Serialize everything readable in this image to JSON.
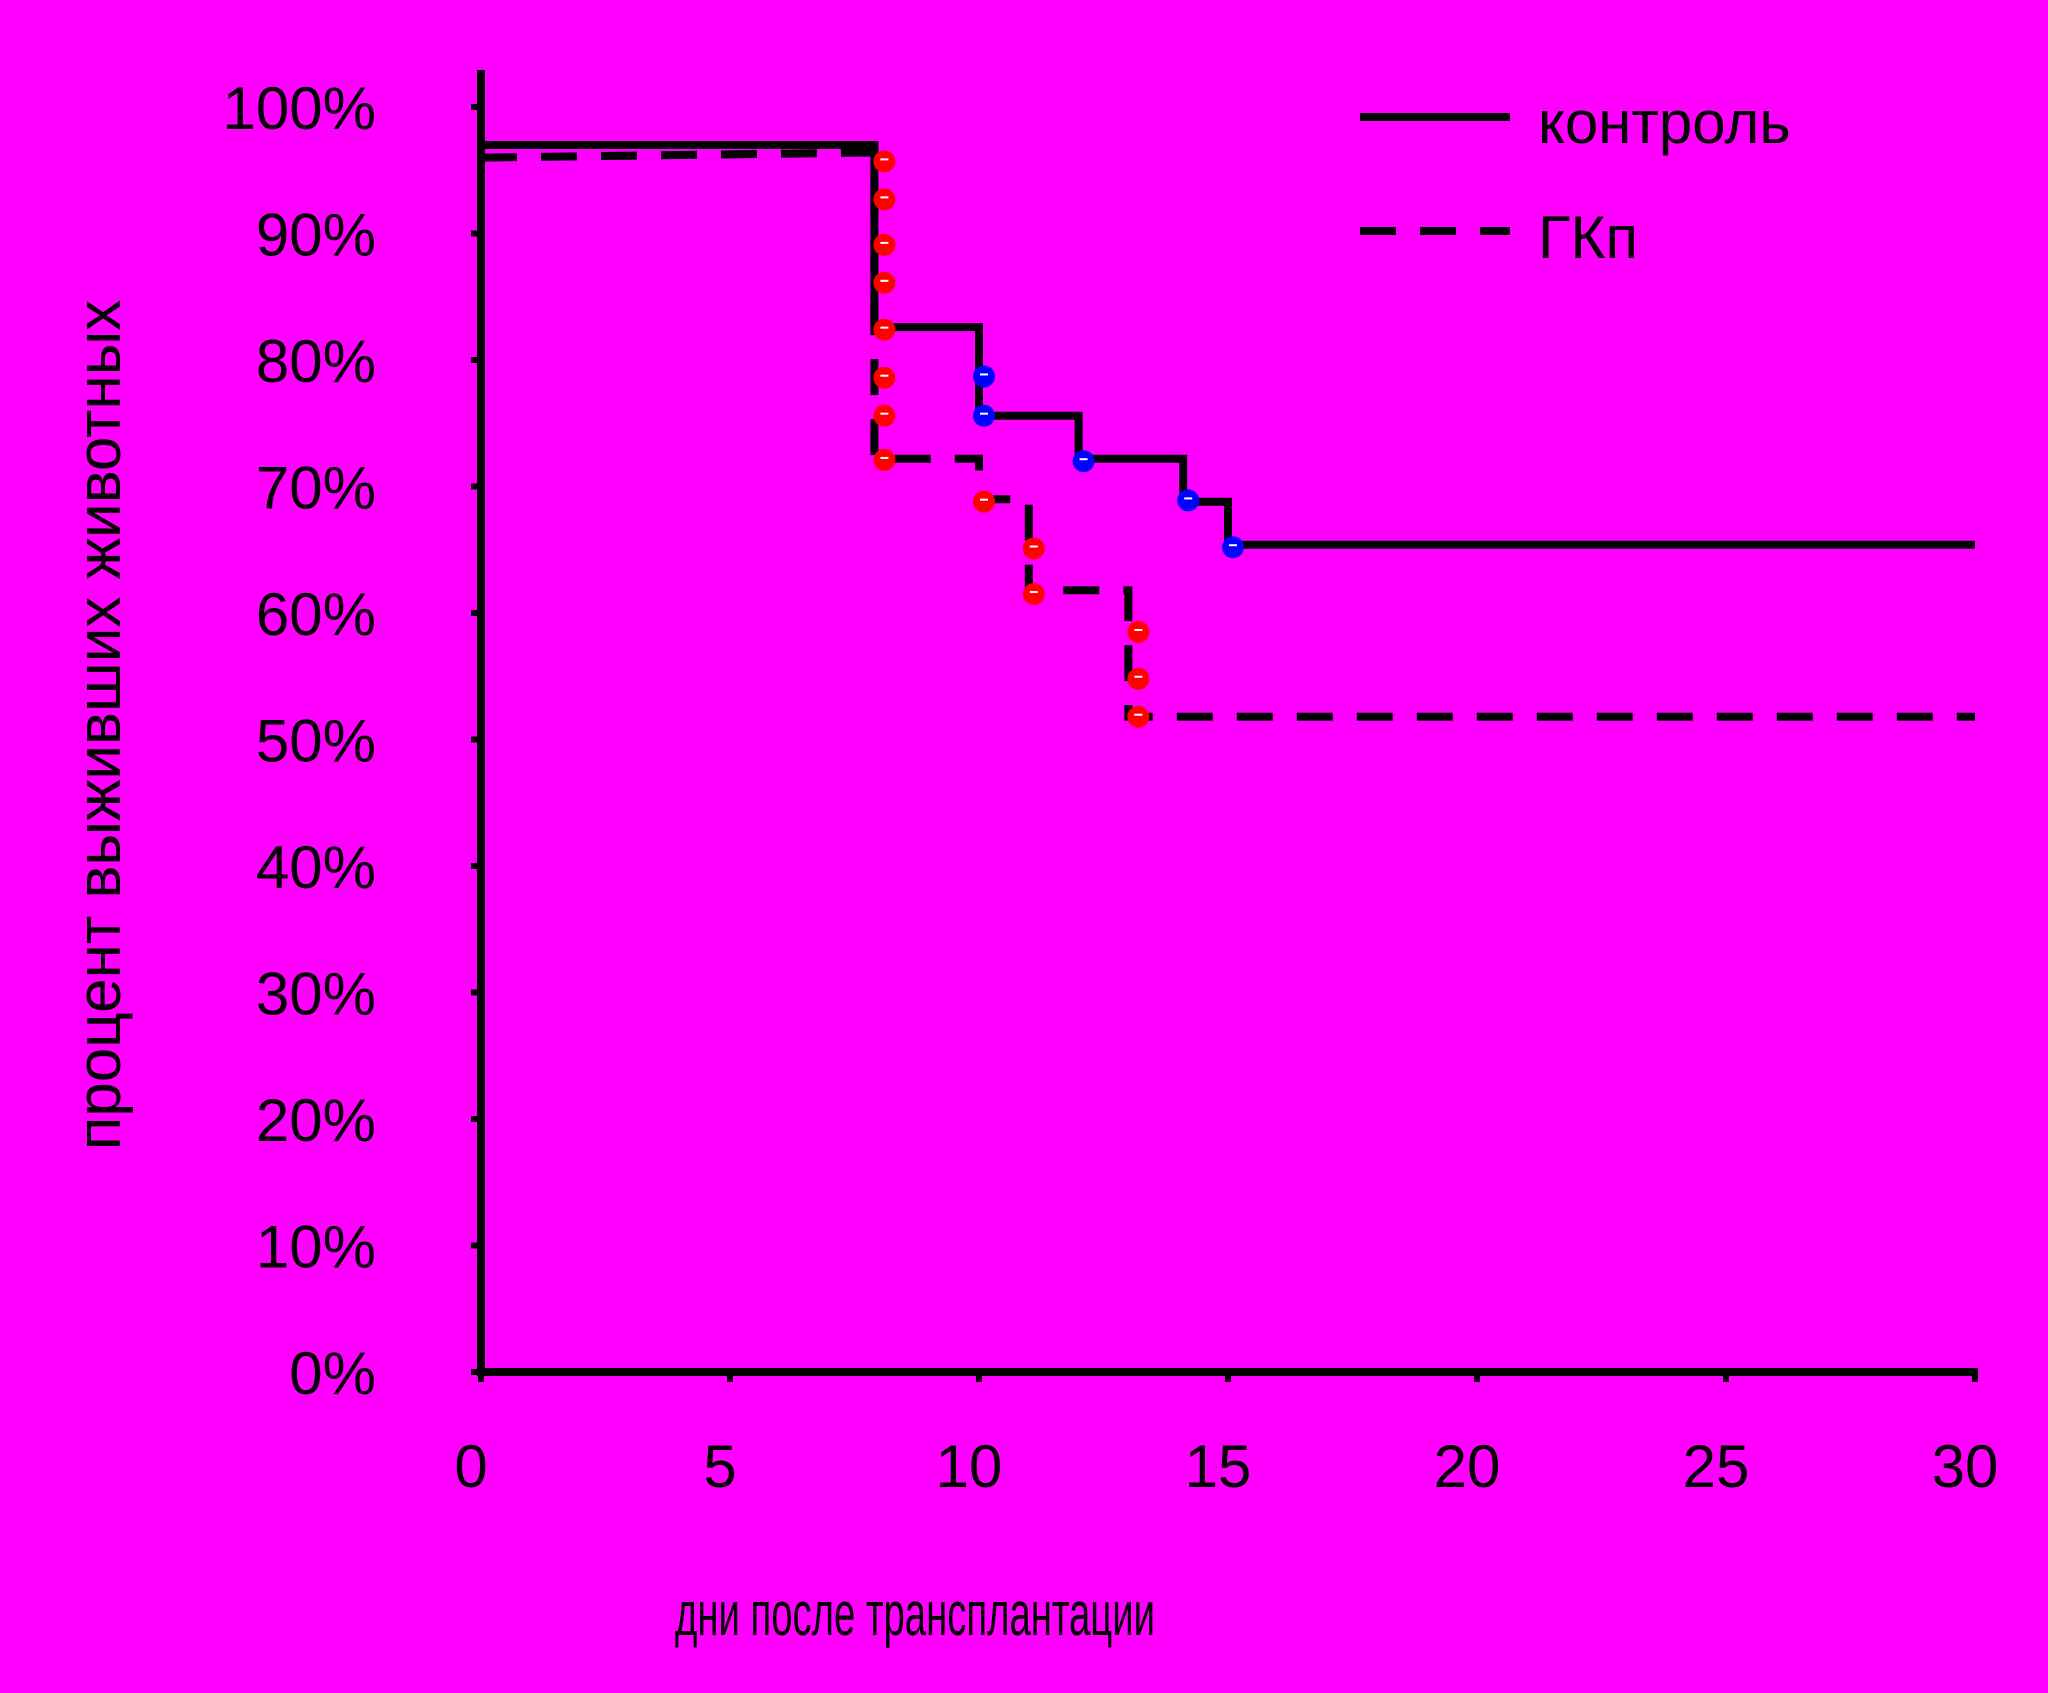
{
  "chart_data": {
    "type": "line",
    "subtype": "kaplan-meier-survival",
    "title": "",
    "xlabel": "дни после трансплантации",
    "ylabel": "процент выживших животных",
    "xlim": [
      0,
      30
    ],
    "ylim": [
      0,
      100
    ],
    "xticks": [
      "0",
      "5",
      "10",
      "15",
      "20",
      "25",
      "30"
    ],
    "yticks": [
      "0%",
      "10%",
      "20%",
      "30%",
      "40%",
      "50%",
      "60%",
      "70%",
      "80%",
      "90%",
      "100%"
    ],
    "grid": false,
    "legend": "top-right",
    "series": [
      {
        "name": "контроль",
        "line_style": "solid",
        "line_color": "#000000",
        "marker_color": "#0000ff",
        "steps": [
          {
            "x": 0,
            "y": 97
          },
          {
            "x": 7.9,
            "y": 97
          },
          {
            "x": 7.9,
            "y": 82.6
          },
          {
            "x": 10,
            "y": 82.6
          },
          {
            "x": 10,
            "y": 75.6
          },
          {
            "x": 12,
            "y": 75.6
          },
          {
            "x": 12,
            "y": 72.2
          },
          {
            "x": 14.1,
            "y": 72.2
          },
          {
            "x": 14.1,
            "y": 68.8
          },
          {
            "x": 15,
            "y": 68.8
          },
          {
            "x": 15,
            "y": 65.4
          },
          {
            "x": 30,
            "y": 65.4
          }
        ],
        "events": [
          {
            "x": 10.1,
            "y": 78.7
          },
          {
            "x": 10.1,
            "y": 75.6
          },
          {
            "x": 12.1,
            "y": 72.0
          },
          {
            "x": 14.2,
            "y": 68.9
          },
          {
            "x": 15.1,
            "y": 65.2
          }
        ]
      },
      {
        "name": "ГКп",
        "line_style": "dashed",
        "line_color": "#000000",
        "marker_color": "#ff0000",
        "steps": [
          {
            "x": 0,
            "y": 96
          },
          {
            "x": 7.9,
            "y": 96.4
          },
          {
            "x": 7.9,
            "y": 72.2
          },
          {
            "x": 10,
            "y": 72.2
          },
          {
            "x": 10,
            "y": 69.0
          },
          {
            "x": 11,
            "y": 69.0
          },
          {
            "x": 11,
            "y": 61.8
          },
          {
            "x": 13,
            "y": 61.8
          },
          {
            "x": 13,
            "y": 51.8
          },
          {
            "x": 30,
            "y": 51.8
          }
        ],
        "events": [
          {
            "x": 8.1,
            "y": 95.7
          },
          {
            "x": 8.1,
            "y": 92.7
          },
          {
            "x": 8.1,
            "y": 89.1
          },
          {
            "x": 8.1,
            "y": 86.1
          },
          {
            "x": 8.1,
            "y": 82.4
          },
          {
            "x": 8.1,
            "y": 78.6
          },
          {
            "x": 8.1,
            "y": 75.6
          },
          {
            "x": 8.1,
            "y": 72.1
          },
          {
            "x": 10.1,
            "y": 68.8
          },
          {
            "x": 11.1,
            "y": 65.1
          },
          {
            "x": 11.1,
            "y": 61.5
          },
          {
            "x": 13.2,
            "y": 58.5
          },
          {
            "x": 13.2,
            "y": 54.8
          },
          {
            "x": 13.2,
            "y": 51.8
          }
        ]
      }
    ]
  }
}
